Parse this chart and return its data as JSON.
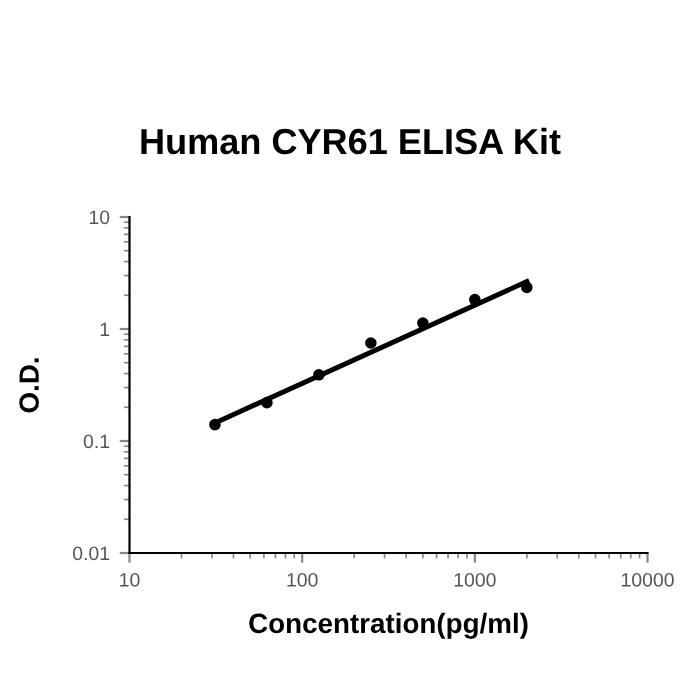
{
  "chart_data": {
    "type": "scatter",
    "title": "Human CYR61 ELISA Kit",
    "xlabel": "Concentration(pg/ml)",
    "ylabel": "O.D.",
    "log": "xy",
    "marker": "circle",
    "grid": false,
    "legend": false,
    "series": [
      {
        "color": "#000000",
        "x": [
          31.25,
          62.5,
          125,
          250,
          500,
          1000,
          2000
        ],
        "values": [
          0.14,
          0.22,
          0.39,
          0.75,
          1.13,
          1.83,
          2.35
        ]
      },
      {
        "type": "line",
        "marker": "none",
        "color": "#000000",
        "x": [
          31.25,
          2000
        ],
        "values": [
          0.145,
          2.65
        ]
      }
    ],
    "xlim": [
      10,
      10000
    ],
    "xticks": [
      10,
      100,
      1000,
      10000
    ],
    "ylim": [
      0.01,
      10
    ],
    "yticks": [
      0.01,
      0.1,
      1,
      10
    ]
  }
}
